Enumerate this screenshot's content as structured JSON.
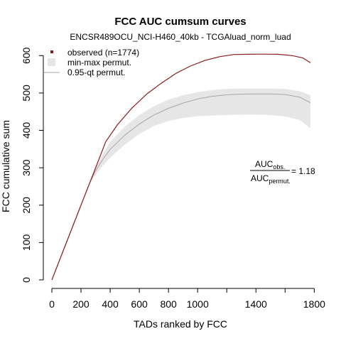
{
  "chart_data": {
    "type": "line",
    "title": "FCC AUC cumsum curves",
    "subtitle": "ENCSR489OCU_NCI-H460_40kb - TCGAluad_norm_luad",
    "xlabel": "TADs ranked by FCC",
    "ylabel": "FCC cumulative sum",
    "xlim": [
      0,
      1774
    ],
    "ylim": [
      0,
      610
    ],
    "x_ticks": [
      0,
      200,
      400,
      600,
      800,
      1000,
      1400,
      1800
    ],
    "x_tick_marks": [
      0,
      200,
      400,
      600,
      800,
      1000,
      1200,
      1400,
      1600,
      1800
    ],
    "y_ticks": [
      0,
      100,
      200,
      300,
      400,
      500,
      600
    ],
    "grid": false,
    "legend_position": "top-left",
    "legend": {
      "observed": "observed (n=1774)",
      "band": "min-max permut.",
      "quantile": "0.95-qt permut."
    },
    "annotation": {
      "num_main": "AUC",
      "num_sub": "obs.",
      "den_main": "AUC",
      "den_sub": "permut.",
      "value": "= 1.18"
    },
    "colors": {
      "observed": "#8b1a1a",
      "band": "#e6e6e6",
      "quantile": "#a6a6a6"
    },
    "series": [
      {
        "name": "observed (n=1774)",
        "x": [
          0,
          100,
          200,
          280,
          370,
          450,
          550,
          650,
          750,
          850,
          950,
          1050,
          1150,
          1250,
          1350,
          1450,
          1550,
          1650,
          1720,
          1774
        ],
        "y": [
          0,
          100,
          200,
          280,
          370,
          415,
          460,
          497,
          526,
          552,
          572,
          587,
          597,
          603,
          603.5,
          604,
          603.5,
          600,
          594,
          581
        ]
      },
      {
        "name": "0.95-qt permut.",
        "x": [
          0,
          100,
          200,
          260,
          300,
          350,
          400,
          500,
          600,
          700,
          800,
          900,
          1000,
          1100,
          1200,
          1300,
          1400,
          1500,
          1600,
          1700,
          1774
        ],
        "y": [
          0,
          100,
          200,
          260,
          292,
          323,
          349,
          387,
          417,
          441,
          459,
          473,
          484,
          491,
          495,
          497,
          497.5,
          497.5,
          496,
          489,
          474
        ]
      }
    ],
    "band": {
      "name": "min-max permut.",
      "x": [
        0,
        100,
        200,
        250,
        300,
        350,
        400,
        500,
        600,
        700,
        800,
        900,
        1000,
        1100,
        1200,
        1300,
        1400,
        1500,
        1600,
        1700,
        1774
      ],
      "upper": [
        0,
        100,
        200,
        250,
        300,
        338,
        369,
        410,
        441,
        464,
        482,
        494,
        502,
        508,
        511,
        512,
        512,
        512,
        511,
        505,
        494
      ],
      "lower": [
        0,
        100,
        200,
        250,
        282,
        305,
        327,
        362,
        390,
        412,
        425,
        433,
        438,
        440,
        441,
        442,
        442,
        441,
        437,
        428,
        406
      ]
    }
  }
}
